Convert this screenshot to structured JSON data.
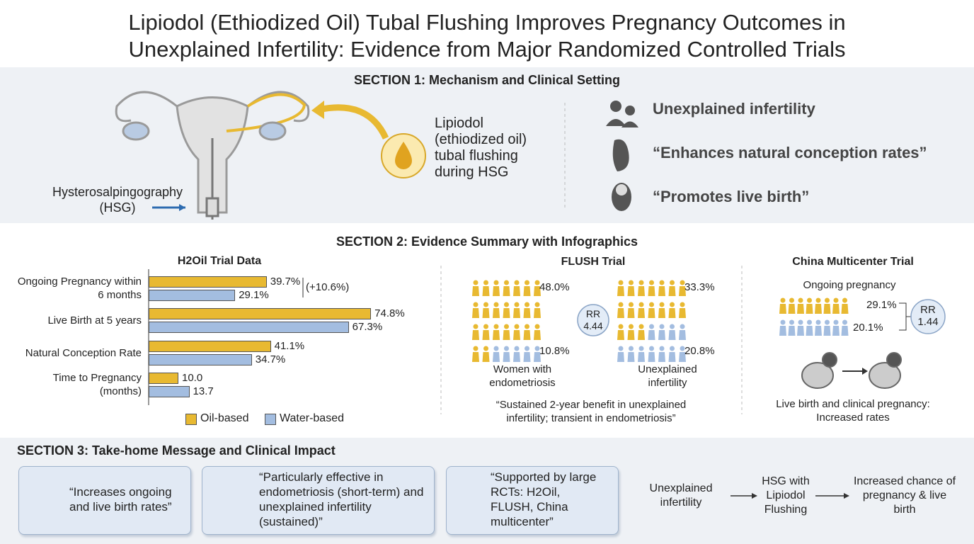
{
  "title": [
    "Lipiodol (Ethiodized Oil) Tubal Flushing Improves Pregnancy Outcomes in",
    "Unexplained Infertility: Evidence from Major Randomized Controlled Trials"
  ],
  "section1": {
    "title": "SECTION 1: Mechanism and Clinical Setting",
    "hsg_label": [
      "Hysterosalpingography",
      "(HSG)"
    ],
    "lipiodol_label": [
      "Lipiodol",
      "(ethiodized oil)",
      "tubal flushing",
      "during HSG"
    ],
    "points": [
      "Unexplained infertility",
      "“Enhances natural conception rates”",
      "“Promotes live birth”"
    ]
  },
  "section2": {
    "title": "SECTION 2: Evidence Summary with Infographics",
    "flush": {
      "title": "FLUSH Trial",
      "groups": [
        {
          "label": [
            "Women with",
            "endometriosis"
          ],
          "values": [
            48.0,
            10.8
          ],
          "value_labels": [
            "48.0%",
            "10.8%"
          ]
        },
        {
          "label": [
            "Unexplained",
            "infertility"
          ],
          "values": [
            33.3,
            20.8
          ],
          "value_labels": [
            "33.3%",
            "20.8%"
          ]
        }
      ],
      "rr": [
        "RR",
        "4.44"
      ],
      "quote": [
        "“Sustained 2-year benefit in unexplained",
        "infertility; transient in endometriosis”"
      ]
    },
    "china": {
      "title": "China Multicenter Trial",
      "subtitle": "Ongoing pregnancy",
      "values": [
        29.1,
        20.1
      ],
      "value_labels": [
        "29.1%",
        "20.1%"
      ],
      "rr": [
        "RR",
        "1.44"
      ],
      "caption": [
        "Live birth and clinical pregnancy:",
        "Increased rates"
      ]
    }
  },
  "chart_data": {
    "type": "bar",
    "orientation": "horizontal",
    "title": "H2Oil Trial Data",
    "categories": [
      "Ongoing Pregnancy within 6 months",
      "Live Birth at 5 years",
      "Natural Conception Rate",
      "Time to Pregnancy (months)"
    ],
    "series": [
      {
        "name": "Oil-based",
        "color": "#e8b931",
        "values": [
          39.7,
          74.8,
          41.1,
          10.0
        ],
        "value_labels": [
          "39.7%",
          "74.8%",
          "41.1%",
          "10.0"
        ]
      },
      {
        "name": "Water-based",
        "color": "#a3bde0",
        "values": [
          29.1,
          67.3,
          34.7,
          13.7
        ],
        "value_labels": [
          "29.1%",
          "67.3%",
          "34.7%",
          "13.7"
        ]
      }
    ],
    "annotation": "(+10.6%)"
  },
  "section3": {
    "title": "SECTION 3: Take-home Message and Clinical Impact",
    "cards": [
      "“Increases ongoing and live birth rates”",
      "“Particularly effective in endometriosis (short-term) and unexplained infertility (sustained)”",
      "“Supported by large RCTs: H2Oil, FLUSH, China multicenter”"
    ],
    "flow": [
      "Unexplained infertility",
      "HSG with Lipiodol Flushing",
      "Increased chance of pregnancy & live birth"
    ]
  }
}
